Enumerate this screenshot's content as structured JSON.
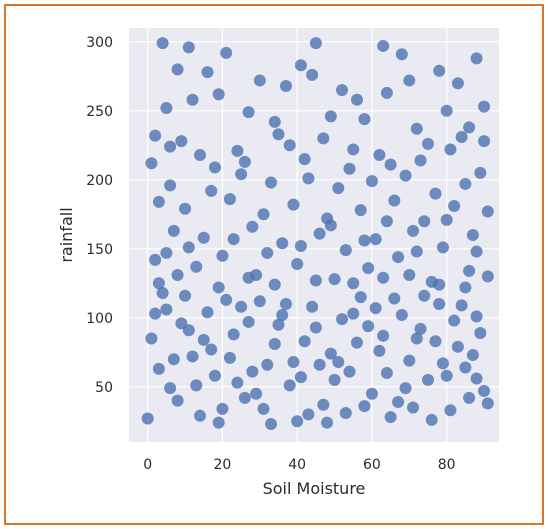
{
  "colors": {
    "frame_border": "#d9772b",
    "plot_background": "#eaeaf2",
    "grid": "#ffffff",
    "points": "#4c72b0"
  },
  "chart_data": {
    "type": "scatter",
    "title": "",
    "xlabel": "Soil Moisture",
    "ylabel": "rainfall",
    "xlim": [
      -5,
      94
    ],
    "ylim": [
      10,
      310
    ],
    "xticks": [
      0,
      20,
      40,
      60,
      80
    ],
    "yticks": [
      50,
      100,
      150,
      200,
      250,
      300
    ],
    "grid": true,
    "legend": "none",
    "marker_color": "#4c72b0",
    "marker_alpha": 0.8,
    "series": [
      {
        "points": [
          [
            4,
            299
          ],
          [
            11,
            296
          ],
          [
            21,
            292
          ],
          [
            45,
            299
          ],
          [
            63,
            297
          ],
          [
            68,
            291
          ],
          [
            88,
            288
          ],
          [
            8,
            280
          ],
          [
            16,
            278
          ],
          [
            30,
            272
          ],
          [
            37,
            268
          ],
          [
            41,
            283
          ],
          [
            44,
            276
          ],
          [
            52,
            265
          ],
          [
            56,
            258
          ],
          [
            64,
            263
          ],
          [
            70,
            272
          ],
          [
            78,
            279
          ],
          [
            83,
            270
          ],
          [
            5,
            252
          ],
          [
            12,
            258
          ],
          [
            19,
            262
          ],
          [
            27,
            249
          ],
          [
            34,
            242
          ],
          [
            49,
            246
          ],
          [
            58,
            244
          ],
          [
            72,
            237
          ],
          [
            80,
            250
          ],
          [
            86,
            238
          ],
          [
            90,
            253
          ],
          [
            2,
            232
          ],
          [
            9,
            228
          ],
          [
            24,
            221
          ],
          [
            38,
            225
          ],
          [
            47,
            230
          ],
          [
            55,
            222
          ],
          [
            62,
            218
          ],
          [
            75,
            226
          ],
          [
            84,
            231
          ],
          [
            89,
            205
          ],
          [
            1,
            212
          ],
          [
            14,
            218
          ],
          [
            6,
            196
          ],
          [
            17,
            192
          ],
          [
            25,
            204
          ],
          [
            33,
            198
          ],
          [
            43,
            201
          ],
          [
            51,
            194
          ],
          [
            60,
            199
          ],
          [
            69,
            203
          ],
          [
            77,
            190
          ],
          [
            85,
            197
          ],
          [
            3,
            184
          ],
          [
            10,
            179
          ],
          [
            22,
            186
          ],
          [
            31,
            175
          ],
          [
            39,
            182
          ],
          [
            48,
            172
          ],
          [
            57,
            178
          ],
          [
            66,
            185
          ],
          [
            74,
            170
          ],
          [
            82,
            181
          ],
          [
            91,
            177
          ],
          [
            7,
            163
          ],
          [
            15,
            158
          ],
          [
            28,
            166
          ],
          [
            36,
            154
          ],
          [
            46,
            161
          ],
          [
            53,
            149
          ],
          [
            61,
            157
          ],
          [
            71,
            163
          ],
          [
            79,
            151
          ],
          [
            87,
            160
          ],
          [
            2,
            142
          ],
          [
            13,
            137
          ],
          [
            20,
            145
          ],
          [
            29,
            131
          ],
          [
            40,
            139
          ],
          [
            50,
            128
          ],
          [
            59,
            136
          ],
          [
            67,
            144
          ],
          [
            76,
            126
          ],
          [
            86,
            134
          ],
          [
            4,
            118
          ],
          [
            9,
            96
          ],
          [
            12,
            72
          ],
          [
            16,
            104
          ],
          [
            18,
            58
          ],
          [
            23,
            88
          ],
          [
            26,
            42
          ],
          [
            30,
            112
          ],
          [
            32,
            66
          ],
          [
            35,
            95
          ],
          [
            38,
            51
          ],
          [
            42,
            83
          ],
          [
            44,
            108
          ],
          [
            47,
            37
          ],
          [
            49,
            74
          ],
          [
            52,
            99
          ],
          [
            54,
            61
          ],
          [
            57,
            115
          ],
          [
            60,
            45
          ],
          [
            63,
            87
          ],
          [
            65,
            28
          ],
          [
            68,
            102
          ],
          [
            70,
            69
          ],
          [
            73,
            92
          ],
          [
            75,
            55
          ],
          [
            78,
            110
          ],
          [
            81,
            33
          ],
          [
            83,
            79
          ],
          [
            85,
            64
          ],
          [
            88,
            101
          ],
          [
            90,
            47
          ],
          [
            1,
            85
          ],
          [
            3,
            63
          ],
          [
            5,
            106
          ],
          [
            8,
            40
          ],
          [
            11,
            91
          ],
          [
            14,
            29
          ],
          [
            17,
            77
          ],
          [
            21,
            113
          ],
          [
            24,
            53
          ],
          [
            27,
            97
          ],
          [
            31,
            34
          ],
          [
            34,
            81
          ],
          [
            37,
            110
          ],
          [
            41,
            57
          ],
          [
            45,
            93
          ],
          [
            48,
            24
          ],
          [
            51,
            68
          ],
          [
            55,
            103
          ],
          [
            58,
            36
          ],
          [
            62,
            76
          ],
          [
            66,
            114
          ],
          [
            69,
            49
          ],
          [
            72,
            85
          ],
          [
            76,
            26
          ],
          [
            79,
            67
          ],
          [
            82,
            98
          ],
          [
            86,
            42
          ],
          [
            89,
            89
          ],
          [
            0,
            27
          ],
          [
            6,
            49
          ],
          [
            19,
            24
          ],
          [
            22,
            71
          ],
          [
            28,
            61
          ],
          [
            33,
            23
          ],
          [
            39,
            68
          ],
          [
            43,
            30
          ],
          [
            50,
            55
          ],
          [
            56,
            82
          ],
          [
            61,
            107
          ],
          [
            64,
            60
          ],
          [
            71,
            35
          ],
          [
            74,
            116
          ],
          [
            80,
            58
          ],
          [
            84,
            109
          ],
          [
            87,
            73
          ],
          [
            91,
            38
          ],
          [
            2,
            103
          ],
          [
            7,
            70
          ],
          [
            10,
            116
          ],
          [
            13,
            51
          ],
          [
            15,
            84
          ],
          [
            20,
            34
          ],
          [
            25,
            108
          ],
          [
            29,
            45
          ],
          [
            36,
            102
          ],
          [
            40,
            25
          ],
          [
            46,
            66
          ],
          [
            53,
            31
          ],
          [
            59,
            94
          ],
          [
            67,
            39
          ],
          [
            77,
            83
          ],
          [
            88,
            56
          ],
          [
            6,
            224
          ],
          [
            18,
            209
          ],
          [
            26,
            213
          ],
          [
            35,
            233
          ],
          [
            42,
            215
          ],
          [
            54,
            208
          ],
          [
            65,
            211
          ],
          [
            73,
            214
          ],
          [
            81,
            222
          ],
          [
            90,
            228
          ],
          [
            5,
            147
          ],
          [
            11,
            151
          ],
          [
            23,
            157
          ],
          [
            32,
            147
          ],
          [
            41,
            152
          ],
          [
            49,
            167
          ],
          [
            58,
            156
          ],
          [
            64,
            170
          ],
          [
            72,
            148
          ],
          [
            80,
            171
          ],
          [
            88,
            148
          ],
          [
            3,
            125
          ],
          [
            8,
            131
          ],
          [
            19,
            122
          ],
          [
            27,
            129
          ],
          [
            34,
            124
          ],
          [
            45,
            127
          ],
          [
            55,
            125
          ],
          [
            63,
            129
          ],
          [
            70,
            131
          ],
          [
            78,
            124
          ],
          [
            85,
            122
          ],
          [
            91,
            130
          ]
        ]
      }
    ]
  }
}
